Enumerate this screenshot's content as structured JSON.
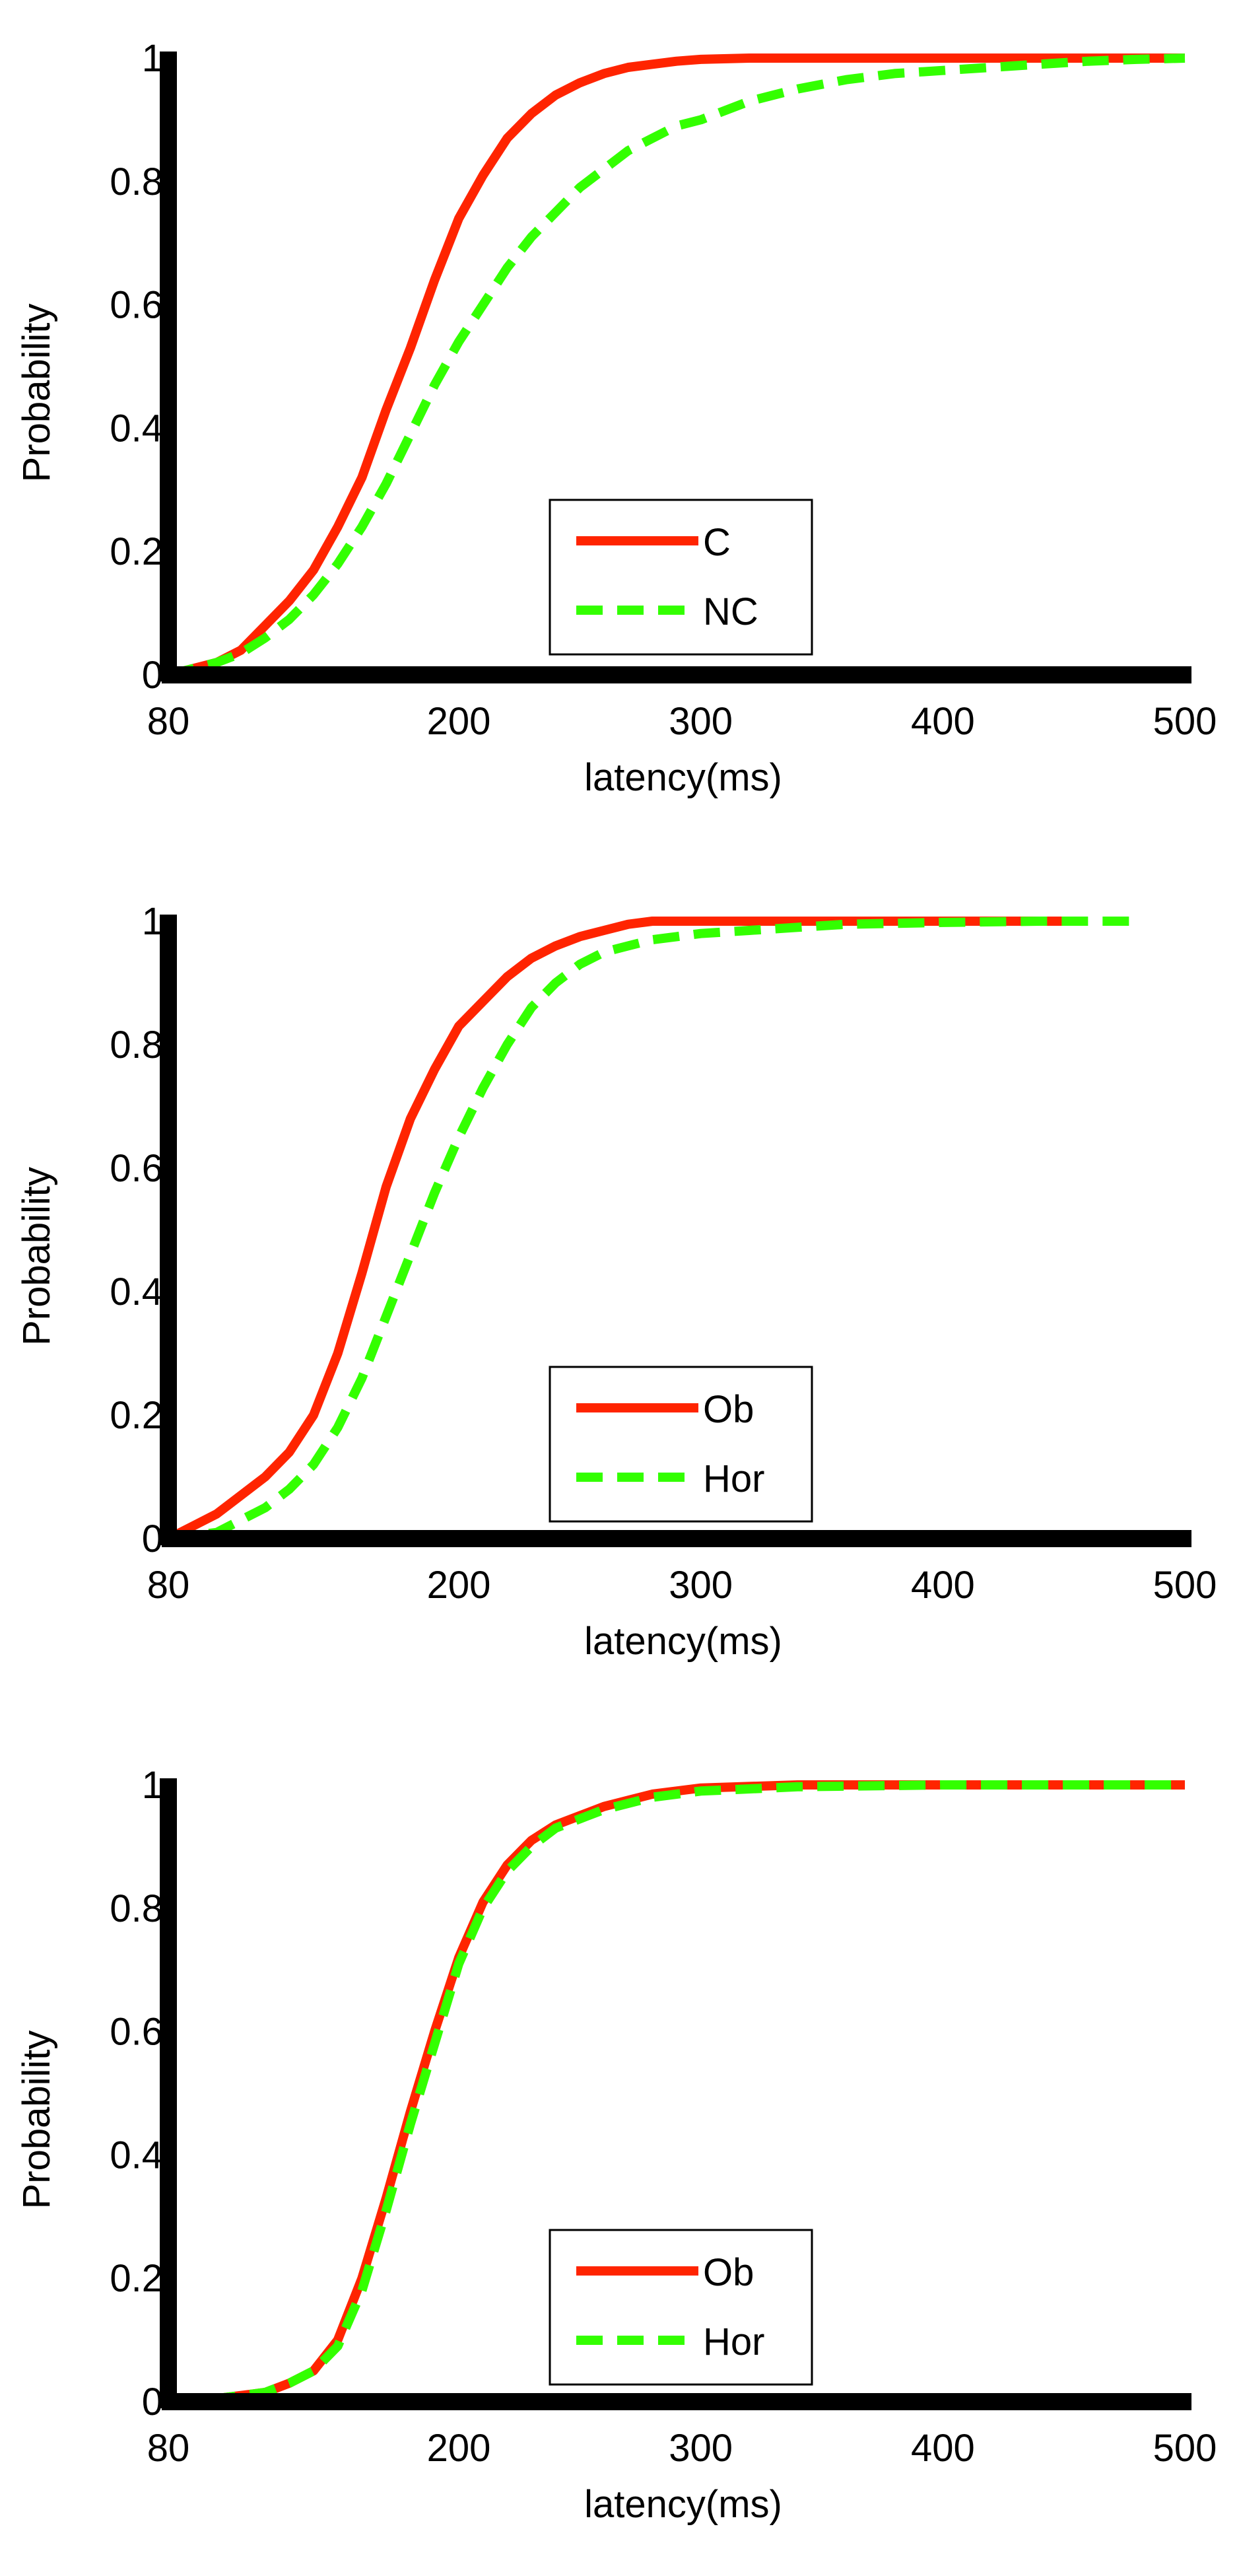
{
  "colors": {
    "series_solid": "#ff2400",
    "series_dashed": "#33ff00",
    "axis": "#000000",
    "background": "#ffffff"
  },
  "chart_data": [
    {
      "type": "line",
      "title": "",
      "xlabel": "latency(ms)",
      "ylabel": "Probability",
      "xlim": [
        80,
        500
      ],
      "ylim": [
        0,
        1
      ],
      "xticks": [
        "80",
        "200",
        "300",
        "400",
        "500"
      ],
      "yticks": [
        "0",
        "0.2",
        "0.4",
        "0.6",
        "0.8",
        "1"
      ],
      "grid": false,
      "legend": "bottom-center",
      "series": [
        {
          "name": "C",
          "style": "solid",
          "x": [
            80,
            90,
            100,
            110,
            120,
            130,
            140,
            150,
            160,
            170,
            180,
            190,
            200,
            210,
            220,
            230,
            240,
            250,
            260,
            270,
            280,
            290,
            300,
            320,
            340,
            380,
            420,
            460,
            500
          ],
          "y": [
            0.0,
            0.01,
            0.02,
            0.04,
            0.08,
            0.12,
            0.17,
            0.24,
            0.32,
            0.43,
            0.53,
            0.64,
            0.74,
            0.81,
            0.87,
            0.91,
            0.94,
            0.96,
            0.975,
            0.985,
            0.99,
            0.995,
            0.998,
            1.0,
            1.0,
            1.0,
            1.0,
            1.0,
            1.0
          ]
        },
        {
          "name": "NC",
          "style": "dashed",
          "x": [
            80,
            90,
            100,
            110,
            120,
            130,
            140,
            150,
            160,
            170,
            180,
            190,
            200,
            210,
            220,
            230,
            240,
            250,
            260,
            270,
            280,
            290,
            300,
            320,
            340,
            360,
            380,
            400,
            420,
            440,
            460,
            480,
            500
          ],
          "y": [
            0.0,
            0.01,
            0.02,
            0.035,
            0.06,
            0.09,
            0.13,
            0.18,
            0.24,
            0.31,
            0.39,
            0.47,
            0.54,
            0.6,
            0.66,
            0.71,
            0.75,
            0.79,
            0.82,
            0.85,
            0.87,
            0.89,
            0.9,
            0.93,
            0.95,
            0.965,
            0.975,
            0.98,
            0.985,
            0.99,
            0.995,
            0.998,
            1.0
          ]
        }
      ]
    },
    {
      "type": "line",
      "title": "",
      "xlabel": "latency(ms)",
      "ylabel": "Probability",
      "xlim": [
        80,
        500
      ],
      "ylim": [
        0,
        1
      ],
      "xticks": [
        "80",
        "200",
        "300",
        "400",
        "500"
      ],
      "yticks": [
        "0",
        "0.2",
        "0.4",
        "0.6",
        "0.8",
        "1"
      ],
      "grid": false,
      "legend": "bottom-center",
      "series": [
        {
          "name": "Ob",
          "style": "solid",
          "x": [
            80,
            90,
            100,
            110,
            120,
            130,
            140,
            150,
            160,
            170,
            180,
            190,
            200,
            210,
            220,
            230,
            240,
            250,
            260,
            270,
            280,
            300,
            340,
            400,
            450
          ],
          "y": [
            0.0,
            0.02,
            0.04,
            0.07,
            0.1,
            0.14,
            0.2,
            0.3,
            0.43,
            0.57,
            0.68,
            0.76,
            0.83,
            0.87,
            0.91,
            0.94,
            0.96,
            0.975,
            0.985,
            0.995,
            1.0,
            1.0,
            1.0,
            1.0,
            1.0
          ]
        },
        {
          "name": "Hor",
          "style": "dashed",
          "x": [
            80,
            90,
            100,
            110,
            120,
            130,
            140,
            150,
            160,
            170,
            180,
            190,
            200,
            210,
            220,
            230,
            240,
            250,
            260,
            270,
            280,
            290,
            300,
            320,
            340,
            360,
            400,
            440,
            480
          ],
          "y": [
            0.0,
            0.005,
            0.01,
            0.03,
            0.05,
            0.08,
            0.12,
            0.18,
            0.26,
            0.36,
            0.46,
            0.56,
            0.65,
            0.73,
            0.8,
            0.86,
            0.9,
            0.93,
            0.95,
            0.96,
            0.97,
            0.975,
            0.98,
            0.985,
            0.99,
            0.995,
            0.998,
            1.0,
            1.0
          ]
        }
      ]
    },
    {
      "type": "line",
      "title": "",
      "xlabel": "latency(ms)",
      "ylabel": "Probability",
      "xlim": [
        80,
        500
      ],
      "ylim": [
        0,
        1
      ],
      "xticks": [
        "80",
        "200",
        "300",
        "400",
        "500"
      ],
      "yticks": [
        "0",
        "0.2",
        "0.4",
        "0.6",
        "0.8",
        "1"
      ],
      "grid": false,
      "legend": "bottom-center",
      "series": [
        {
          "name": "Ob",
          "style": "solid",
          "x": [
            80,
            100,
            120,
            130,
            140,
            150,
            160,
            170,
            180,
            190,
            200,
            210,
            220,
            230,
            240,
            250,
            260,
            270,
            280,
            290,
            300,
            340,
            400,
            500
          ],
          "y": [
            0.0,
            0.005,
            0.015,
            0.03,
            0.05,
            0.1,
            0.2,
            0.33,
            0.47,
            0.6,
            0.72,
            0.81,
            0.87,
            0.91,
            0.935,
            0.95,
            0.965,
            0.975,
            0.985,
            0.99,
            0.995,
            1.0,
            1.0,
            1.0
          ]
        },
        {
          "name": "Hor",
          "style": "dashed",
          "x": [
            80,
            100,
            120,
            130,
            140,
            150,
            160,
            170,
            180,
            190,
            200,
            210,
            220,
            230,
            240,
            250,
            260,
            270,
            280,
            290,
            300,
            340,
            400,
            500
          ],
          "y": [
            0.0,
            0.005,
            0.015,
            0.03,
            0.05,
            0.09,
            0.18,
            0.31,
            0.45,
            0.58,
            0.71,
            0.8,
            0.86,
            0.9,
            0.93,
            0.945,
            0.96,
            0.97,
            0.98,
            0.985,
            0.99,
            0.997,
            1.0,
            1.0
          ]
        }
      ]
    }
  ]
}
